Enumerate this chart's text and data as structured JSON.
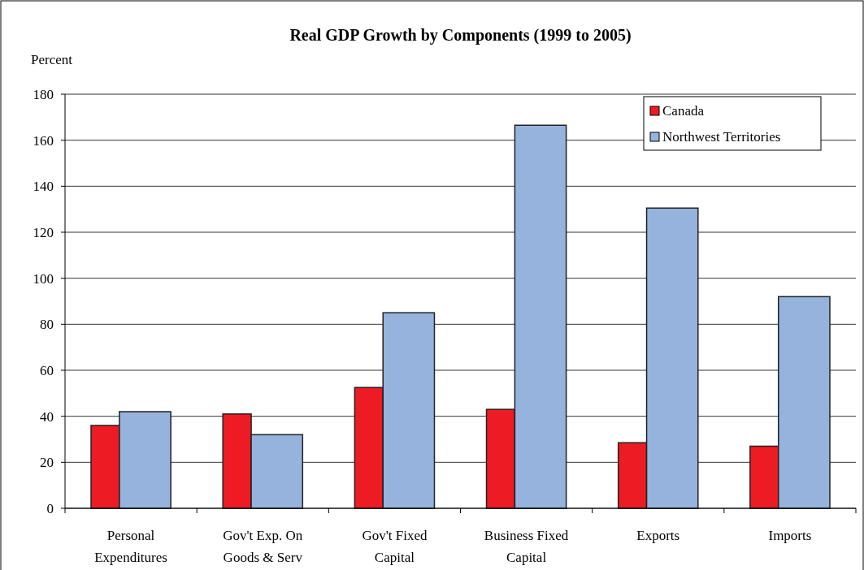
{
  "chart_data": {
    "type": "bar",
    "title": "Real GDP Growth by Components (1999 to 2005)",
    "ylabel": "Percent",
    "categories": [
      "Personal Expenditures",
      "Gov't Exp. On Goods & Serv",
      "Gov't Fixed Capital",
      "Business Fixed Capital",
      "Exports",
      "Imports"
    ],
    "series": [
      {
        "name": "Canada",
        "color": "#ed1c24",
        "values": [
          36,
          41,
          52.5,
          43,
          28.5,
          27
        ]
      },
      {
        "name": "Northwest Territories",
        "color": "#95b3dc",
        "values": [
          42,
          32,
          85,
          166.5,
          130.5,
          92
        ]
      }
    ],
    "ylim": [
      0,
      180
    ],
    "yticks": [
      0,
      20,
      40,
      60,
      80,
      100,
      120,
      140,
      160,
      180
    ],
    "grid": "y",
    "legend": "top right"
  }
}
